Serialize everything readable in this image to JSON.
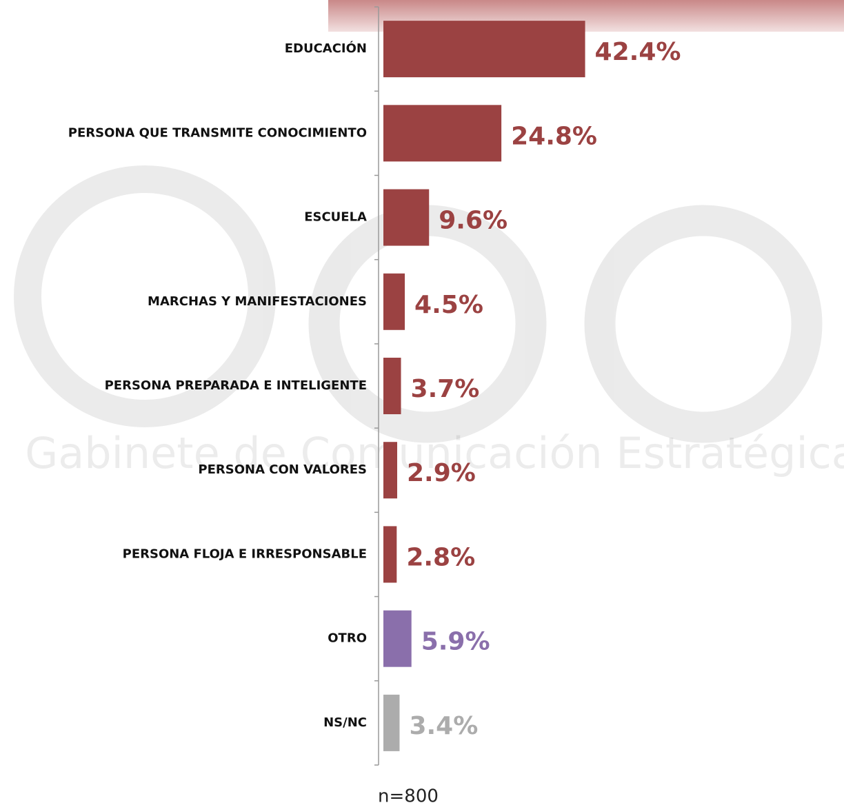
{
  "chart_data": {
    "type": "bar",
    "orientation": "horizontal",
    "categories": [
      "EDUCACIÓN",
      "PERSONA QUE TRANSMITE CONOCIMIENTO",
      "ESCUELA",
      "MARCHAS Y MANIFESTACIONES",
      "PERSONA PREPARADA E INTELIGENTE",
      "PERSONA CON VALORES",
      "PERSONA FLOJA E IRRESPONSABLE",
      "OTRO",
      "NS/NC"
    ],
    "values": [
      42.4,
      24.8,
      9.6,
      4.5,
      3.7,
      2.9,
      2.8,
      5.9,
      3.4
    ],
    "value_labels": [
      "42.4%",
      "24.8%",
      "9.6%",
      "4.5%",
      "3.7%",
      "2.9%",
      "2.8%",
      "5.9%",
      "3.4%"
    ],
    "colors": [
      "#9b4242",
      "#9b4242",
      "#9b4242",
      "#9b4242",
      "#9b4242",
      "#9b4242",
      "#9b4242",
      "#8a6fab",
      "#acacac"
    ],
    "xlim": [
      0,
      50
    ],
    "note": "n=800",
    "watermark": "Gabinete de Comunicación Estratégica"
  }
}
